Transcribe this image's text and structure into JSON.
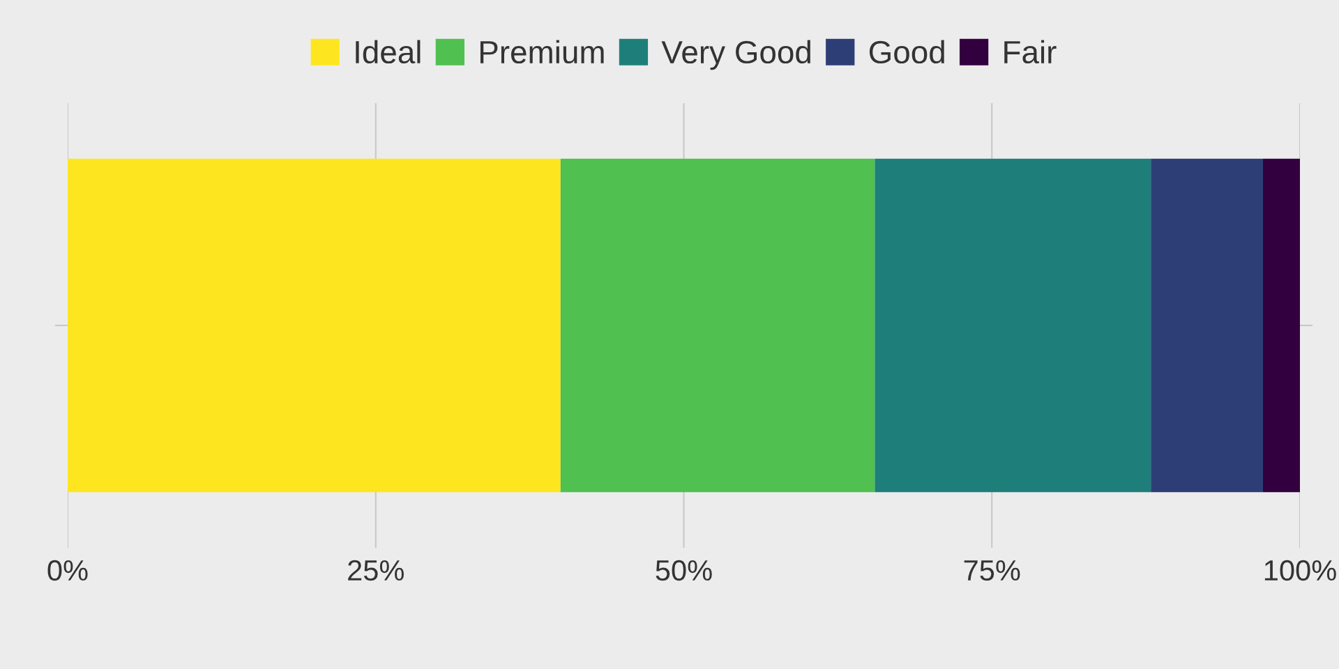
{
  "chart_data": {
    "type": "bar",
    "orientation": "horizontal",
    "stacked": true,
    "categories": [
      null
    ],
    "series": [
      {
        "name": "Ideal",
        "color": "#fde620",
        "values": [
          40.0
        ]
      },
      {
        "name": "Premium",
        "color": "#50c050",
        "values": [
          25.5
        ]
      },
      {
        "name": "Very Good",
        "color": "#1e7f7a",
        "values": [
          22.4
        ]
      },
      {
        "name": "Good",
        "color": "#2d3d76",
        "values": [
          9.1
        ]
      },
      {
        "name": "Fair",
        "color": "#33003f",
        "values": [
          3.0
        ]
      }
    ],
    "xlim": [
      0,
      100
    ],
    "xticks": [
      {
        "value": 0,
        "label": "0%"
      },
      {
        "value": 25,
        "label": "25%"
      },
      {
        "value": 50,
        "label": "50%"
      },
      {
        "value": 75,
        "label": "75%"
      },
      {
        "value": 100,
        "label": "100%"
      }
    ],
    "grid": "x",
    "legend": "top",
    "tick_labels": "x"
  }
}
